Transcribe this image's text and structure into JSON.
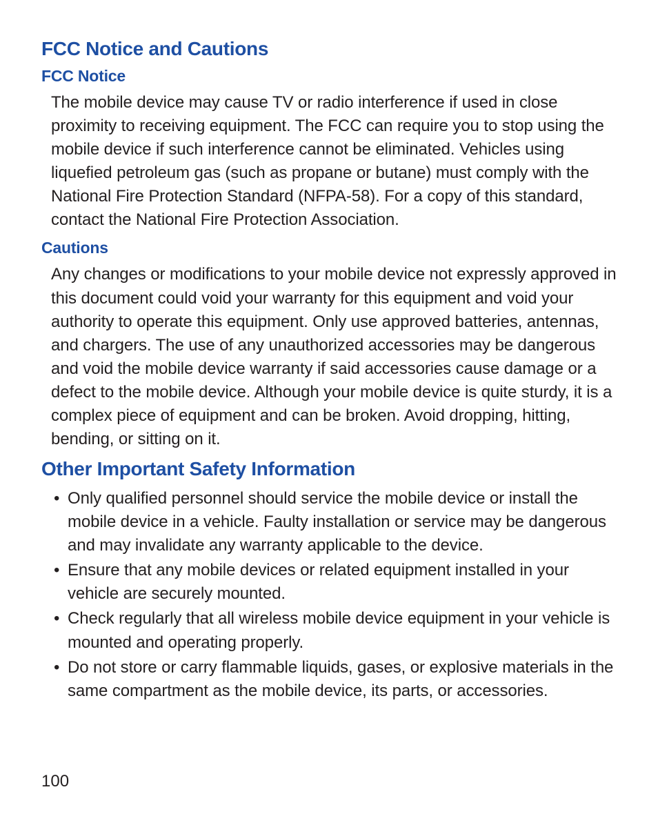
{
  "colors": {
    "heading": "#1e4fa3",
    "body_text": "#231f20",
    "background": "#ffffff"
  },
  "typography": {
    "h1_size": 28,
    "h2_size": 23,
    "body_size": 24,
    "line_height": 1.42,
    "font_family": "Arial condensed"
  },
  "section1": {
    "title": "FCC Notice and Cautions",
    "sub1": {
      "title": "FCC Notice",
      "body": "The mobile device may cause TV or radio interference if used in close proximity to receiving equipment. The FCC can require you to stop using the mobile device if such interference cannot be eliminated. Vehicles using liquefied petroleum gas (such as propane or butane) must comply with the National Fire Protection Standard (NFPA-58). For a copy of this standard, contact the National Fire Protection Association."
    },
    "sub2": {
      "title": "Cautions",
      "body": "Any changes or modifications to your mobile device not expressly approved in this document could void your warranty for this equipment and void your authority to operate this equipment. Only use approved batteries, antennas, and chargers. The use of any unauthorized accessories may be dangerous and void the mobile device warranty if said accessories cause damage or a defect to the mobile device. Although your mobile device is quite sturdy, it is a complex piece of equipment and can be broken. Avoid dropping, hitting, bending, or sitting on it."
    }
  },
  "section2": {
    "title": "Other Important Safety Information",
    "bullets": [
      "Only qualified personnel should service the mobile device or install the mobile device in a vehicle. Faulty installation or service may be dangerous and may invalidate any warranty applicable to the device.",
      "Ensure that any mobile devices or related equipment installed in your vehicle are securely mounted.",
      "Check regularly that all wireless mobile device equipment in your vehicle is mounted and operating properly.",
      "Do not store or carry flammable liquids, gases, or explosive materials in the same compartment as the mobile device, its parts, or accessories."
    ]
  },
  "page_number": "100"
}
